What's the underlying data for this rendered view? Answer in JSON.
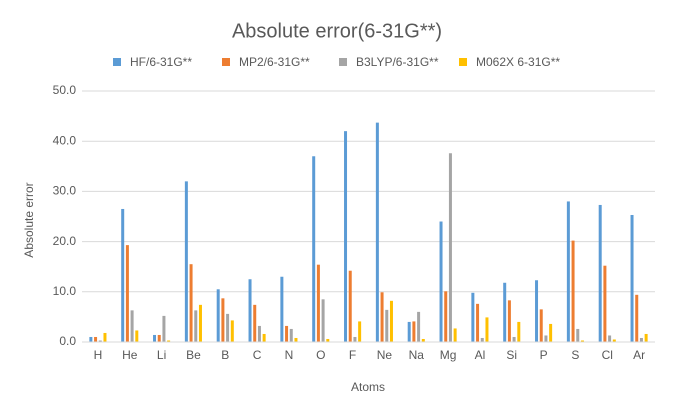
{
  "chart_data": {
    "type": "bar",
    "title": "Absolute error(6-31G**)",
    "x_label": "Atoms",
    "y_label": "Absolute error",
    "categories": [
      "H",
      "He",
      "Li",
      "Be",
      "B",
      "C",
      "N",
      "O",
      "F",
      "Ne",
      "Na",
      "Mg",
      "Al",
      "Si",
      "P",
      "S",
      "Cl",
      "Ar"
    ],
    "series": [
      {
        "name": "HF/6-31G**",
        "color": "#5b9bd5",
        "values": [
          1.0,
          26.5,
          1.4,
          32.0,
          10.5,
          12.5,
          13.0,
          37.0,
          42.0,
          43.7,
          4.0,
          24.0,
          9.8,
          11.8,
          12.3,
          28.0,
          27.3,
          25.3
        ]
      },
      {
        "name": "MP2/6-31G**",
        "color": "#ed7d31",
        "values": [
          1.0,
          19.3,
          1.4,
          15.5,
          8.7,
          7.4,
          3.2,
          15.4,
          14.2,
          9.9,
          4.1,
          10.1,
          7.6,
          8.3,
          6.5,
          20.2,
          15.2,
          9.4
        ]
      },
      {
        "name": "B3LYP/6-31G**",
        "color": "#a5a5a5",
        "values": [
          0.3,
          6.3,
          5.2,
          6.3,
          5.6,
          3.2,
          2.6,
          8.5,
          1.0,
          6.4,
          6.0,
          37.6,
          0.8,
          1.0,
          1.3,
          2.6,
          1.3,
          0.8
        ]
      },
      {
        "name": "M062X 6-31G**",
        "color": "#ffc000",
        "values": [
          1.8,
          2.3,
          0.3,
          7.4,
          4.3,
          1.6,
          0.8,
          0.6,
          4.1,
          8.2,
          0.6,
          2.7,
          4.9,
          4.0,
          3.6,
          0.3,
          0.5,
          1.6
        ]
      }
    ],
    "ylim": [
      0,
      50
    ],
    "yticks": [
      {
        "value": 0,
        "label": "0.0"
      },
      {
        "value": 10,
        "label": "10.0"
      },
      {
        "value": 20,
        "label": "20.0"
      },
      {
        "value": 30,
        "label": "30.0"
      },
      {
        "value": 40,
        "label": "40.0"
      },
      {
        "value": 50,
        "label": "50.0"
      }
    ],
    "grid": true,
    "legend": "top"
  }
}
